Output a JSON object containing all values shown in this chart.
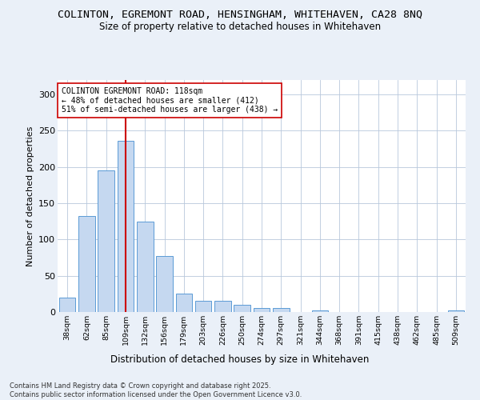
{
  "title": "COLINTON, EGREMONT ROAD, HENSINGHAM, WHITEHAVEN, CA28 8NQ",
  "subtitle": "Size of property relative to detached houses in Whitehaven",
  "xlabel": "Distribution of detached houses by size in Whitehaven",
  "ylabel": "Number of detached properties",
  "categories": [
    "38sqm",
    "62sqm",
    "85sqm",
    "109sqm",
    "132sqm",
    "156sqm",
    "179sqm",
    "203sqm",
    "226sqm",
    "250sqm",
    "274sqm",
    "297sqm",
    "321sqm",
    "344sqm",
    "368sqm",
    "391sqm",
    "415sqm",
    "438sqm",
    "462sqm",
    "485sqm",
    "509sqm"
  ],
  "values": [
    20,
    132,
    195,
    236,
    125,
    77,
    25,
    15,
    15,
    10,
    6,
    6,
    0,
    2,
    0,
    0,
    0,
    0,
    0,
    0,
    2
  ],
  "bar_color": "#c5d8f0",
  "bar_edge_color": "#5b9bd5",
  "vline_x": 3.0,
  "vline_color": "#cc0000",
  "annotation_text": "COLINTON EGREMONT ROAD: 118sqm\n← 48% of detached houses are smaller (412)\n51% of semi-detached houses are larger (438) →",
  "annotation_box_color": "#ffffff",
  "annotation_box_edge": "#cc0000",
  "ylim": [
    0,
    320
  ],
  "yticks": [
    0,
    50,
    100,
    150,
    200,
    250,
    300
  ],
  "footer": "Contains HM Land Registry data © Crown copyright and database right 2025.\nContains public sector information licensed under the Open Government Licence v3.0.",
  "bg_color": "#eaf0f8",
  "plot_bg_color": "#ffffff",
  "title_fontsize": 9.5,
  "subtitle_fontsize": 8.5,
  "footer_fontsize": 6.0
}
